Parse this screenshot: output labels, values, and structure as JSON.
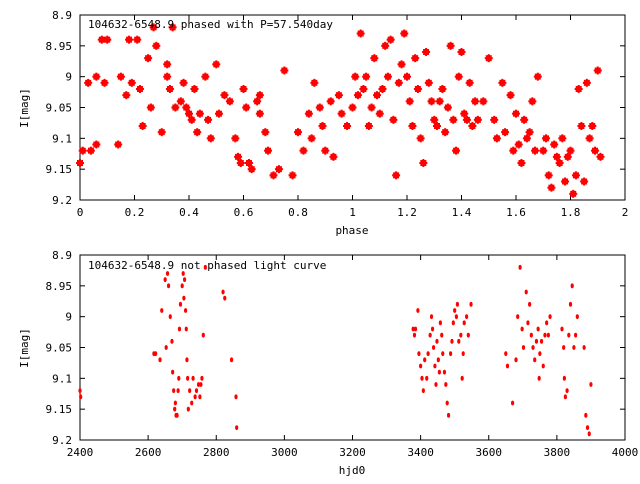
{
  "chart_data": [
    {
      "type": "scatter",
      "marker": "star",
      "title": "104632-6548.9 phased with P=57.540day",
      "xlabel": "phase",
      "ylabel": "I[mag]",
      "xlim": [
        0,
        2
      ],
      "ylim": [
        9.2,
        8.9
      ],
      "y_inverted": true,
      "xticks": [
        0,
        0.2,
        0.4,
        0.6,
        0.8,
        1,
        1.2,
        1.4,
        1.6,
        1.8,
        2
      ],
      "xtick_labels": [
        "0",
        "0.2",
        "0.4",
        "0.6",
        "0.8",
        "1",
        "1.2",
        "1.4",
        "1.6",
        "1.8",
        "2"
      ],
      "yticks": [
        8.9,
        8.95,
        9,
        9.05,
        9.1,
        9.15,
        9.2
      ],
      "ytick_labels": [
        "8.9",
        "8.95",
        "9",
        "9.05",
        "9.1",
        "9.15",
        "9.2"
      ],
      "grid": false,
      "color": "#ff0000",
      "series": [
        {
          "x": [
            0.0,
            0.01,
            0.03,
            0.04,
            0.06,
            0.06,
            0.08,
            0.09,
            0.1,
            0.14,
            0.15,
            0.17,
            0.18,
            0.19,
            0.21,
            0.22,
            0.23,
            0.25,
            0.26,
            0.27,
            0.28,
            0.3,
            0.32,
            0.32,
            0.33,
            0.34,
            0.35,
            0.37,
            0.38,
            0.39,
            0.4,
            0.41,
            0.42,
            0.43,
            0.44,
            0.46,
            0.47,
            0.48,
            0.5,
            0.51,
            0.53,
            0.55,
            0.57,
            0.58,
            0.59,
            0.6,
            0.61,
            0.62,
            0.63,
            0.65,
            0.66,
            0.66,
            0.68,
            0.69,
            0.71,
            0.73,
            0.75,
            0.78,
            0.8,
            0.82,
            0.84,
            0.85,
            0.86,
            0.88,
            0.89,
            0.9,
            0.92,
            0.93,
            0.95,
            0.96,
            0.98,
            1.0,
            1.01,
            1.02,
            1.03,
            1.04,
            1.05,
            1.06,
            1.07,
            1.08,
            1.09,
            1.1,
            1.11,
            1.12,
            1.13,
            1.14,
            1.15,
            1.16,
            1.17,
            1.18,
            1.19,
            1.2,
            1.21,
            1.22,
            1.23,
            1.24,
            1.25,
            1.26,
            1.27,
            1.28,
            1.29,
            1.3,
            1.31,
            1.32,
            1.33,
            1.34,
            1.35,
            1.36,
            1.37,
            1.38,
            1.39,
            1.4,
            1.41,
            1.42,
            1.43,
            1.44,
            1.45,
            1.46,
            1.48,
            1.5,
            1.52,
            1.53,
            1.55,
            1.56,
            1.58,
            1.59,
            1.6,
            1.61,
            1.62,
            1.63,
            1.64,
            1.65,
            1.66,
            1.67,
            1.68,
            1.7,
            1.71,
            1.72,
            1.73,
            1.74,
            1.75,
            1.76,
            1.77,
            1.78,
            1.79,
            1.8,
            1.81,
            1.82,
            1.83,
            1.84,
            1.85,
            1.86,
            1.87,
            1.88,
            1.89,
            1.9,
            1.91
          ],
          "y": [
            9.14,
            9.12,
            9.01,
            9.12,
            9.11,
            9.0,
            8.94,
            9.01,
            8.94,
            9.11,
            9.0,
            9.03,
            8.94,
            9.01,
            8.94,
            9.02,
            9.08,
            8.97,
            9.05,
            8.92,
            8.95,
            9.09,
            8.98,
            9.0,
            9.02,
            8.92,
            9.05,
            9.04,
            9.01,
            9.05,
            9.06,
            9.07,
            9.02,
            9.09,
            9.06,
            9.0,
            9.07,
            9.1,
            8.98,
            9.06,
            9.03,
            9.04,
            9.1,
            9.13,
            9.14,
            9.02,
            9.05,
            9.14,
            9.15,
            9.04,
            9.06,
            9.03,
            9.09,
            9.12,
            9.16,
            9.15,
            8.99,
            9.16,
            9.09,
            9.12,
            9.06,
            9.1,
            9.01,
            9.05,
            9.08,
            9.12,
            9.04,
            9.13,
            9.03,
            9.06,
            9.08,
            9.05,
            9.0,
            9.03,
            8.93,
            9.02,
            9.0,
            9.08,
            9.05,
            8.97,
            9.03,
            9.06,
            9.02,
            8.95,
            9.0,
            8.94,
            9.07,
            9.16,
            9.01,
            8.98,
            8.93,
            9.0,
            9.04,
            9.08,
            8.97,
            9.02,
            9.1,
            9.14,
            8.96,
            9.01,
            9.04,
            9.07,
            9.08,
            9.04,
            9.02,
            9.09,
            9.05,
            8.95,
            9.07,
            9.12,
            9.0,
            8.96,
            9.06,
            9.07,
            9.01,
            9.08,
            9.04,
            9.07,
            9.04,
            8.97,
            9.07,
            9.1,
            9.01,
            9.09,
            9.03,
            9.12,
            9.06,
            9.11,
            9.14,
            9.07,
            9.1,
            9.09,
            9.04,
            9.12,
            9.0,
            9.12,
            9.1,
            9.16,
            9.18,
            9.11,
            9.13,
            9.14,
            9.1,
            9.17,
            9.13,
            9.12,
            9.19,
            9.16,
            9.02,
            9.08,
            9.17,
            9.01,
            9.1,
            9.08,
            9.12,
            8.99,
            9.13
          ]
        }
      ]
    },
    {
      "type": "scatter",
      "marker": "dot",
      "title": "104632-6548.9 not phased light curve",
      "xlabel": "hjd0",
      "ylabel": "I[mag]",
      "xlim": [
        2400,
        4000
      ],
      "ylim": [
        9.2,
        8.9
      ],
      "y_inverted": true,
      "xticks": [
        2400,
        2600,
        2800,
        3000,
        3200,
        3400,
        3600,
        3800,
        4000
      ],
      "xtick_labels": [
        "2400",
        "2600",
        "2800",
        "3000",
        "3200",
        "3400",
        "3600",
        "3800",
        "4000"
      ],
      "yticks": [
        8.9,
        8.95,
        9,
        9.05,
        9.1,
        9.15,
        9.2
      ],
      "ytick_labels": [
        "8.9",
        "8.95",
        "9",
        "9.05",
        "9.1",
        "9.15",
        "9.2"
      ],
      "grid": false,
      "color": "#ff0000",
      "series": [
        {
          "x": [
            2400,
            2402,
            2617,
            2622,
            2635,
            2640,
            2650,
            2653,
            2657,
            2660,
            2665,
            2670,
            2672,
            2675,
            2678,
            2680,
            2682,
            2685,
            2688,
            2690,
            2692,
            2695,
            2700,
            2703,
            2705,
            2707,
            2710,
            2712,
            2714,
            2716,
            2718,
            2722,
            2728,
            2732,
            2738,
            2742,
            2748,
            2752,
            2755,
            2758,
            2762,
            2768,
            2820,
            2825,
            2845,
            2858,
            2860,
            3378,
            3382,
            3385,
            3392,
            3395,
            3400,
            3404,
            3408,
            3412,
            3418,
            3422,
            3428,
            3432,
            3435,
            3438,
            3442,
            3445,
            3448,
            3452,
            3455,
            3458,
            3462,
            3465,
            3470,
            3474,
            3478,
            3482,
            3488,
            3492,
            3496,
            3500,
            3505,
            3508,
            3512,
            3518,
            3522,
            3525,
            3528,
            3535,
            3540,
            3548,
            3650,
            3655,
            3670,
            3680,
            3685,
            3692,
            3698,
            3702,
            3710,
            3715,
            3720,
            3725,
            3730,
            3735,
            3740,
            3745,
            3748,
            3750,
            3755,
            3760,
            3765,
            3770,
            3775,
            3780,
            3815,
            3820,
            3822,
            3825,
            3830,
            3835,
            3840,
            3845,
            3850,
            3855,
            3860,
            3880,
            3885,
            3890,
            3895,
            3900
          ],
          "y": [
            9.12,
            9.13,
            9.06,
            9.06,
            9.07,
            8.99,
            8.94,
            9.05,
            8.93,
            8.95,
            9.0,
            9.04,
            9.09,
            9.12,
            9.15,
            9.14,
            9.16,
            9.16,
            9.12,
            9.1,
            9.02,
            8.98,
            8.95,
            8.93,
            8.97,
            8.94,
            8.99,
            9.02,
            9.07,
            9.1,
            9.15,
            9.12,
            9.14,
            9.1,
            9.13,
            9.12,
            9.11,
            9.13,
            9.11,
            9.1,
            9.03,
            8.92,
            8.96,
            8.97,
            9.07,
            9.13,
            9.18,
            9.02,
            9.03,
            9.02,
            8.99,
            9.06,
            9.08,
            9.1,
            9.12,
            9.07,
            9.1,
            9.06,
            9.03,
            9.0,
            9.02,
            9.05,
            9.08,
            9.11,
            9.04,
            9.07,
            9.09,
            9.01,
            9.03,
            9.06,
            9.09,
            9.11,
            9.14,
            9.16,
            9.06,
            9.04,
            9.01,
            8.99,
            9.0,
            8.98,
            9.04,
            9.03,
            9.1,
            9.06,
            9.01,
            9.0,
            9.03,
            8.98,
            9.06,
            9.08,
            9.14,
            9.07,
            9.0,
            8.92,
            9.02,
            9.05,
            8.96,
            9.01,
            8.98,
            9.03,
            9.05,
            9.07,
            9.04,
            9.02,
            9.1,
            9.06,
            9.04,
            9.08,
            9.03,
            9.01,
            9.03,
            9.0,
            9.02,
            9.05,
            9.1,
            9.13,
            9.12,
            9.03,
            8.98,
            8.95,
            9.05,
            9.03,
            9.0,
            9.05,
            9.16,
            9.18,
            9.19,
            9.11
          ]
        }
      ]
    }
  ]
}
